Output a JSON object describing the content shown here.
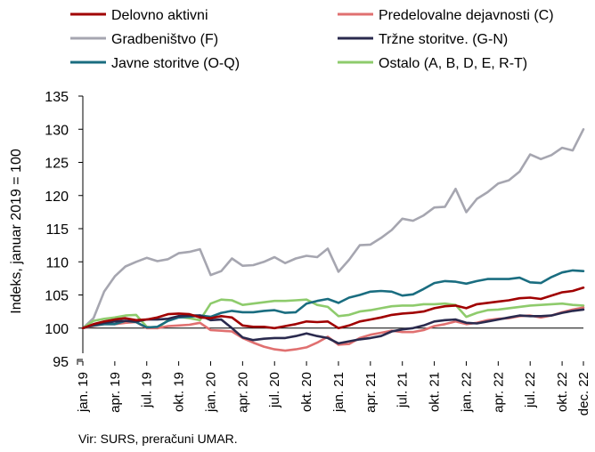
{
  "chart_data": {
    "type": "line",
    "title": "",
    "ylabel": "Indeks, januar 2019 = 100",
    "xlabel": "",
    "ylim": [
      95,
      135
    ],
    "yticks": [
      95,
      100,
      105,
      110,
      115,
      120,
      125,
      130,
      135
    ],
    "grid": false,
    "legend_position": "top",
    "baseline": 100,
    "x": [
      "jan.19",
      "feb.19",
      "mar.19",
      "apr.19",
      "maj.19",
      "jun.19",
      "jul.19",
      "avg.19",
      "sep.19",
      "okt.19",
      "nov.19",
      "dec.19",
      "jan.20",
      "feb.20",
      "mar.20",
      "apr.20",
      "maj.20",
      "jun.20",
      "jul.20",
      "avg.20",
      "sep.20",
      "okt.20",
      "nov.20",
      "dec.20",
      "jan.21",
      "feb.21",
      "mar.21",
      "apr.21",
      "maj.21",
      "jun.21",
      "jul.21",
      "avg.21",
      "sep.21",
      "okt.21",
      "nov.21",
      "dec.21",
      "jan.22",
      "feb.22",
      "mar.22",
      "apr.22",
      "maj.22",
      "jun.22",
      "jul.22",
      "avg.22",
      "sep.22",
      "okt.22",
      "nov.22",
      "dec.22"
    ],
    "x_ticks": [
      "jan. 19",
      "apr. 19",
      "jul. 19",
      "okt. 19",
      "jan. 20",
      "apr. 20",
      "jul. 20",
      "okt. 20",
      "jan. 21",
      "apr. 21",
      "jul. 21",
      "okt. 21",
      "jan. 22",
      "apr. 22",
      "jul. 22",
      "okt. 22",
      "dec. 22"
    ],
    "series": [
      {
        "name": "Delovno aktivni",
        "color": "#a00000",
        "values": [
          100,
          100.6,
          101.0,
          101.3,
          101.5,
          101.2,
          101.3,
          101.6,
          102.1,
          102.2,
          102.1,
          101.6,
          101.5,
          101.8,
          101.6,
          100.4,
          100.2,
          100.2,
          100.0,
          100.3,
          100.6,
          101.0,
          100.9,
          101.0,
          100.0,
          100.4,
          101.0,
          101.3,
          101.6,
          102.0,
          102.2,
          102.3,
          102.5,
          103.0,
          103.3,
          103.4,
          103.0,
          103.6,
          103.8,
          104.0,
          104.2,
          104.5,
          104.6,
          104.4,
          104.9,
          105.4,
          105.6,
          106.1
        ]
      },
      {
        "name": "Predelovalne dejavnosti (C)",
        "color": "#e07070",
        "values": [
          100,
          100.3,
          100.6,
          100.6,
          100.8,
          100.9,
          100.0,
          100.0,
          100.3,
          100.4,
          100.5,
          100.8,
          99.7,
          99.6,
          99.5,
          98.5,
          97.8,
          97.2,
          96.8,
          96.6,
          96.8,
          97.1,
          97.8,
          98.7,
          97.5,
          97.6,
          98.5,
          99.0,
          99.3,
          99.6,
          99.4,
          99.4,
          99.7,
          100.3,
          100.6,
          101.0,
          100.6,
          100.8,
          101.2,
          101.4,
          101.5,
          101.8,
          101.9,
          101.6,
          101.9,
          102.4,
          102.8,
          103.1
        ]
      },
      {
        "name": "Gradbeništvo (F)",
        "color": "#a6a6b0",
        "values": [
          100,
          101.5,
          105.5,
          107.8,
          109.3,
          110.0,
          110.6,
          110.1,
          110.4,
          111.3,
          111.5,
          111.9,
          108.0,
          108.6,
          110.5,
          109.4,
          109.5,
          110.0,
          110.7,
          109.8,
          110.5,
          110.9,
          110.7,
          112.0,
          108.5,
          110.3,
          112.5,
          112.6,
          113.6,
          114.8,
          116.5,
          116.2,
          117.0,
          118.2,
          118.3,
          121.0,
          117.5,
          119.5,
          120.5,
          121.8,
          122.3,
          123.6,
          126.2,
          125.5,
          126.1,
          127.2,
          126.8,
          130.0
        ]
      },
      {
        "name": "Tržne storitve. (G-N)",
        "color": "#2a2a4e",
        "values": [
          100,
          100.5,
          100.8,
          101.0,
          101.1,
          101.0,
          101.3,
          101.3,
          101.4,
          101.8,
          101.9,
          101.9,
          101.2,
          101.3,
          100.0,
          98.6,
          98.2,
          98.4,
          98.5,
          98.5,
          98.8,
          99.2,
          98.8,
          98.5,
          97.7,
          98.0,
          98.3,
          98.5,
          98.8,
          99.5,
          99.8,
          100.0,
          100.4,
          101.0,
          101.2,
          101.3,
          100.8,
          100.7,
          101.0,
          101.3,
          101.6,
          101.9,
          101.8,
          101.8,
          101.9,
          102.3,
          102.6,
          102.8
        ]
      },
      {
        "name": "Javne storitve (O-Q)",
        "color": "#1a6d80",
        "values": [
          100,
          100.4,
          100.6,
          100.6,
          101.1,
          100.9,
          100.1,
          100.2,
          101.1,
          101.6,
          101.7,
          101.9,
          101.7,
          102.3,
          102.6,
          102.4,
          102.4,
          102.6,
          102.7,
          102.3,
          102.4,
          103.7,
          104.1,
          104.4,
          103.8,
          104.6,
          105.0,
          105.5,
          105.6,
          105.5,
          104.9,
          105.1,
          105.9,
          106.8,
          107.1,
          107.0,
          106.7,
          107.1,
          107.4,
          107.4,
          107.4,
          107.6,
          106.9,
          106.8,
          107.7,
          108.4,
          108.7,
          108.6
        ]
      },
      {
        "name": "Ostalo (A, B, D, E, R-T)",
        "color": "#8ecb6c",
        "values": [
          100,
          101.1,
          101.4,
          101.6,
          101.9,
          102.0,
          100.2,
          100.0,
          101.2,
          101.7,
          101.5,
          101.2,
          103.7,
          104.3,
          104.2,
          103.5,
          103.7,
          103.9,
          104.1,
          104.1,
          104.2,
          104.3,
          103.5,
          103.2,
          101.8,
          102.0,
          102.5,
          102.7,
          103.0,
          103.3,
          103.4,
          103.4,
          103.6,
          103.6,
          103.7,
          103.5,
          101.7,
          102.3,
          102.7,
          102.8,
          103.0,
          103.2,
          103.4,
          103.5,
          103.6,
          103.7,
          103.5,
          103.4
        ]
      }
    ],
    "source": "Vir: SURS, preračuni UMAR."
  }
}
